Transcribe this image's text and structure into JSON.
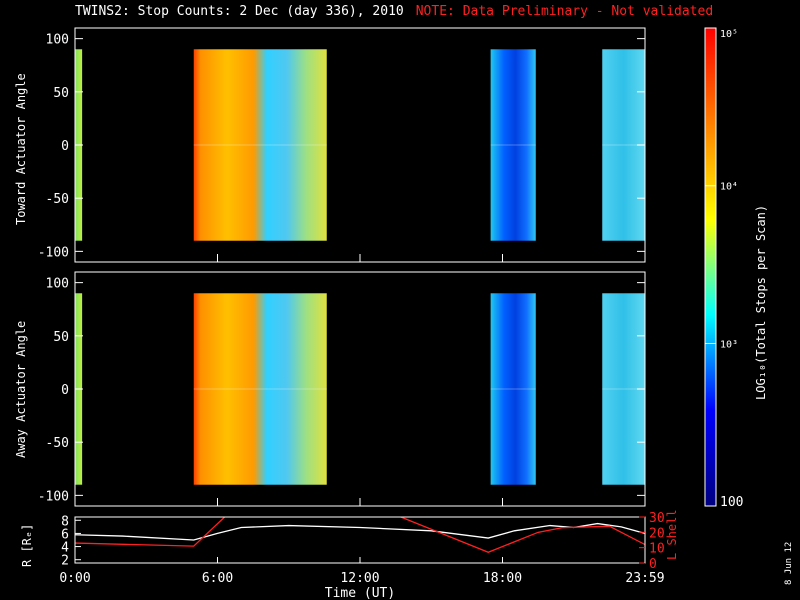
{
  "title": {
    "main": "TWINS2: Stop Counts:  2 Dec (day 336), 2010",
    "note": "NOTE: Data Preliminary - Not validated"
  },
  "stamp": "8 Jun 12",
  "chart_data": [
    {
      "type": "heatmap",
      "ylabel": "Toward Actuator Angle",
      "xlim": [
        0,
        24
      ],
      "ylim": [
        -110,
        110
      ],
      "yticks": [
        "100",
        "50",
        "0",
        "-50",
        "-100"
      ],
      "data_blocks": [
        {
          "x": [
            0.0,
            0.3
          ],
          "level": 3.2
        },
        {
          "x": [
            5.0,
            10.6
          ],
          "level": 4.5
        },
        {
          "x": [
            17.5,
            19.4
          ],
          "level": 2.6
        },
        {
          "x": [
            22.2,
            24.0
          ],
          "level": 3.3
        }
      ]
    },
    {
      "type": "heatmap",
      "ylabel": "Away Actuator Angle",
      "xlim": [
        0,
        24
      ],
      "ylim": [
        -110,
        110
      ],
      "yticks": [
        "100",
        "50",
        "0",
        "-50",
        "-100"
      ],
      "data_blocks": [
        {
          "x": [
            0.0,
            0.3
          ],
          "level": 3.2
        },
        {
          "x": [
            5.0,
            10.6
          ],
          "level": 4.5
        },
        {
          "x": [
            17.5,
            19.4
          ],
          "level": 2.6
        },
        {
          "x": [
            22.2,
            24.0
          ],
          "level": 3.3
        }
      ]
    },
    {
      "type": "line",
      "xlabel": "Time (UT)",
      "xticks": [
        "0:00",
        "6:00",
        "12:00",
        "18:00",
        "23:59"
      ],
      "xlim": [
        0,
        24
      ],
      "ylabel_left": "R [Rₑ]",
      "ylim_left": [
        1.5,
        8.5
      ],
      "yticks_left": [
        "8",
        "6",
        "4",
        "2"
      ],
      "ylabel_right": "L Shell",
      "ylim_right": [
        0,
        30
      ],
      "yticks_right": [
        "30",
        "20",
        "10",
        "0"
      ],
      "series": [
        {
          "color": "#ffffff",
          "axis": "left",
          "x": [
            0,
            2,
            5,
            6,
            7,
            9,
            12,
            15,
            17.4,
            18.5,
            20,
            21,
            22,
            23,
            24
          ],
          "y": [
            5.8,
            5.6,
            5.0,
            6.0,
            6.9,
            7.2,
            6.9,
            6.4,
            5.3,
            6.4,
            7.2,
            6.9,
            7.5,
            7.0,
            6.0
          ]
        },
        {
          "color": "#ff2020",
          "axis": "right",
          "x": [
            0,
            5,
            6.3,
            6.6,
            13.4,
            17.4,
            19.5,
            20.5,
            22.5,
            24
          ],
          "y": [
            13,
            11,
            30,
            32,
            32,
            7,
            20,
            23,
            24,
            12
          ]
        }
      ]
    }
  ],
  "colorbar": {
    "label": "LOG₁₀(Total Stops per Scan)",
    "ticks": [
      "10⁵",
      "10⁴",
      "10³",
      "100"
    ],
    "colors": [
      "#ff0000",
      "#ff8000",
      "#ffff00",
      "#00ffff",
      "#0000ff",
      "#000080"
    ]
  }
}
